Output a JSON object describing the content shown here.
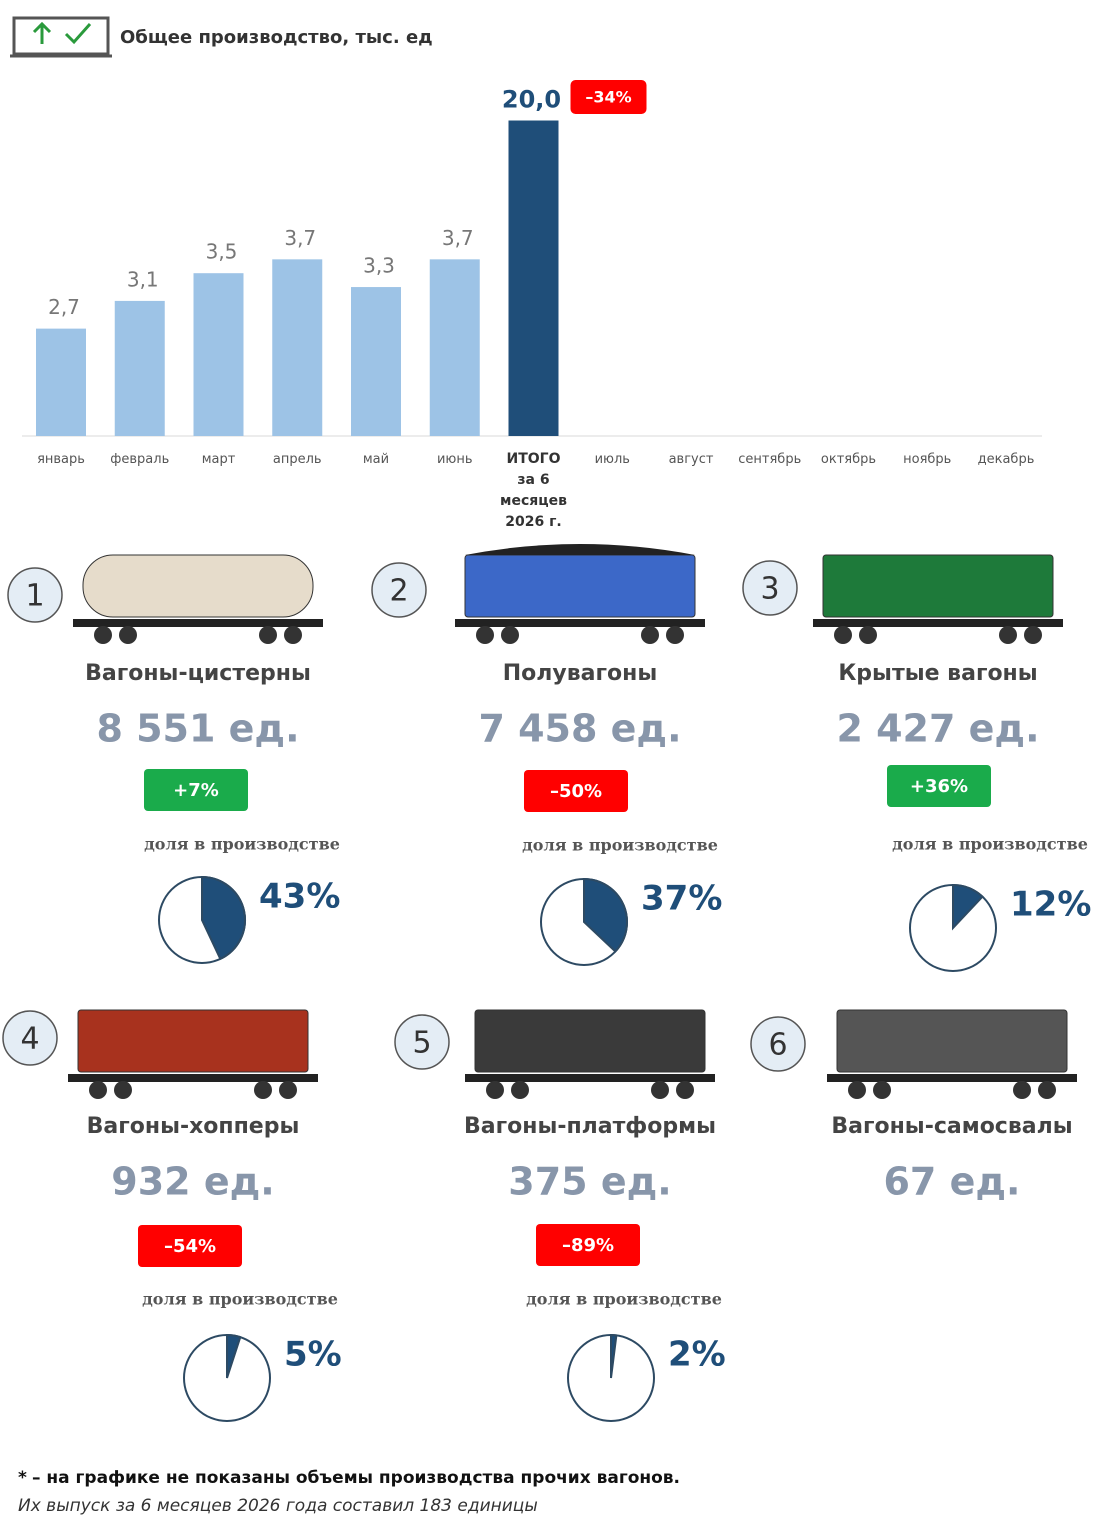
{
  "header": {
    "title": "Общее производство, тыс. ед"
  },
  "chart_data": {
    "type": "bar",
    "categories": [
      "январь",
      "февраль",
      "март",
      "апрель",
      "май",
      "июнь",
      "ИТОГО\nза 6 месяцев\n2026 г.",
      "июль",
      "август",
      "сентябрь",
      "октябрь",
      "ноябрь",
      "декабрь"
    ],
    "series": [
      {
        "color": "#9dc3e6",
        "values": [
          2.7,
          3.1,
          3.5,
          3.7,
          3.3,
          3.7,
          null,
          null,
          null,
          null,
          null,
          null,
          null
        ],
        "value_labels": [
          "2,7",
          "3,1",
          "3,5",
          "3,7",
          "3,3",
          "3,7",
          null,
          null,
          null,
          null,
          null,
          null,
          null
        ]
      },
      {
        "color": "#1f4e79",
        "axis": "y2",
        "values": [
          null,
          null,
          null,
          null,
          null,
          null,
          20.0,
          null,
          null,
          null,
          null,
          null,
          null
        ],
        "value_labels": [
          null,
          null,
          null,
          null,
          null,
          null,
          "20,0",
          null,
          null,
          null,
          null,
          null,
          null
        ]
      }
    ],
    "ylim": [
      1.15,
      6.0
    ],
    "y2lim": [
      0,
      21.3
    ],
    "annotation": "–34%",
    "annotation_color": "#ff0000"
  },
  "wagons": [
    {
      "number": "1",
      "name": "Вагоны-цистерны",
      "count": "8 551 ед.",
      "change": "+7%",
      "badge_color": "#1aab4b",
      "share_caption": "доля в производстве",
      "share": {
        "value": 43,
        "label": "43%"
      },
      "color": "#e6dccb"
    },
    {
      "number": "2",
      "name": "Полувагоны",
      "count": "7 458 ед.",
      "change": "–50%",
      "badge_color": "#ff0000",
      "share_caption": "доля в производстве",
      "share": {
        "value": 37,
        "label": "37%"
      },
      "color": "#3c68c8"
    },
    {
      "number": "3",
      "name": "Крытые вагоны",
      "count": "2 427 ед.",
      "change": "+36%",
      "badge_color": "#1aab4b",
      "share_caption": "доля в производстве",
      "share": {
        "value": 12,
        "label": "12%"
      },
      "color": "#1e7a3a"
    },
    {
      "number": "4",
      "name": "Вагоны-хопперы",
      "count": "932 ед.",
      "change": "–54%",
      "badge_color": "#ff0000",
      "share_caption": "доля в производстве",
      "share": {
        "value": 5,
        "label": "5%"
      },
      "color": "#a8321e"
    },
    {
      "number": "5",
      "name": "Вагоны-платформы",
      "count": "375 ед.",
      "change": "–89%",
      "badge_color": "#ff0000",
      "share_caption": "доля в производстве",
      "share": {
        "value": 2,
        "label": "2%"
      },
      "color": "#3a3a3a"
    },
    {
      "number": "6",
      "name": "Вагоны-самосвалы",
      "count": "67 ед.",
      "color": "#555555"
    }
  ],
  "footnote": {
    "mark": "*",
    "line1": "– на графике не показаны объемы производства прочих вагонов.",
    "line2": "Их выпуск за 6 месяцев 2026 года составил 183 единицы"
  },
  "pie_color": "#1f4e79"
}
